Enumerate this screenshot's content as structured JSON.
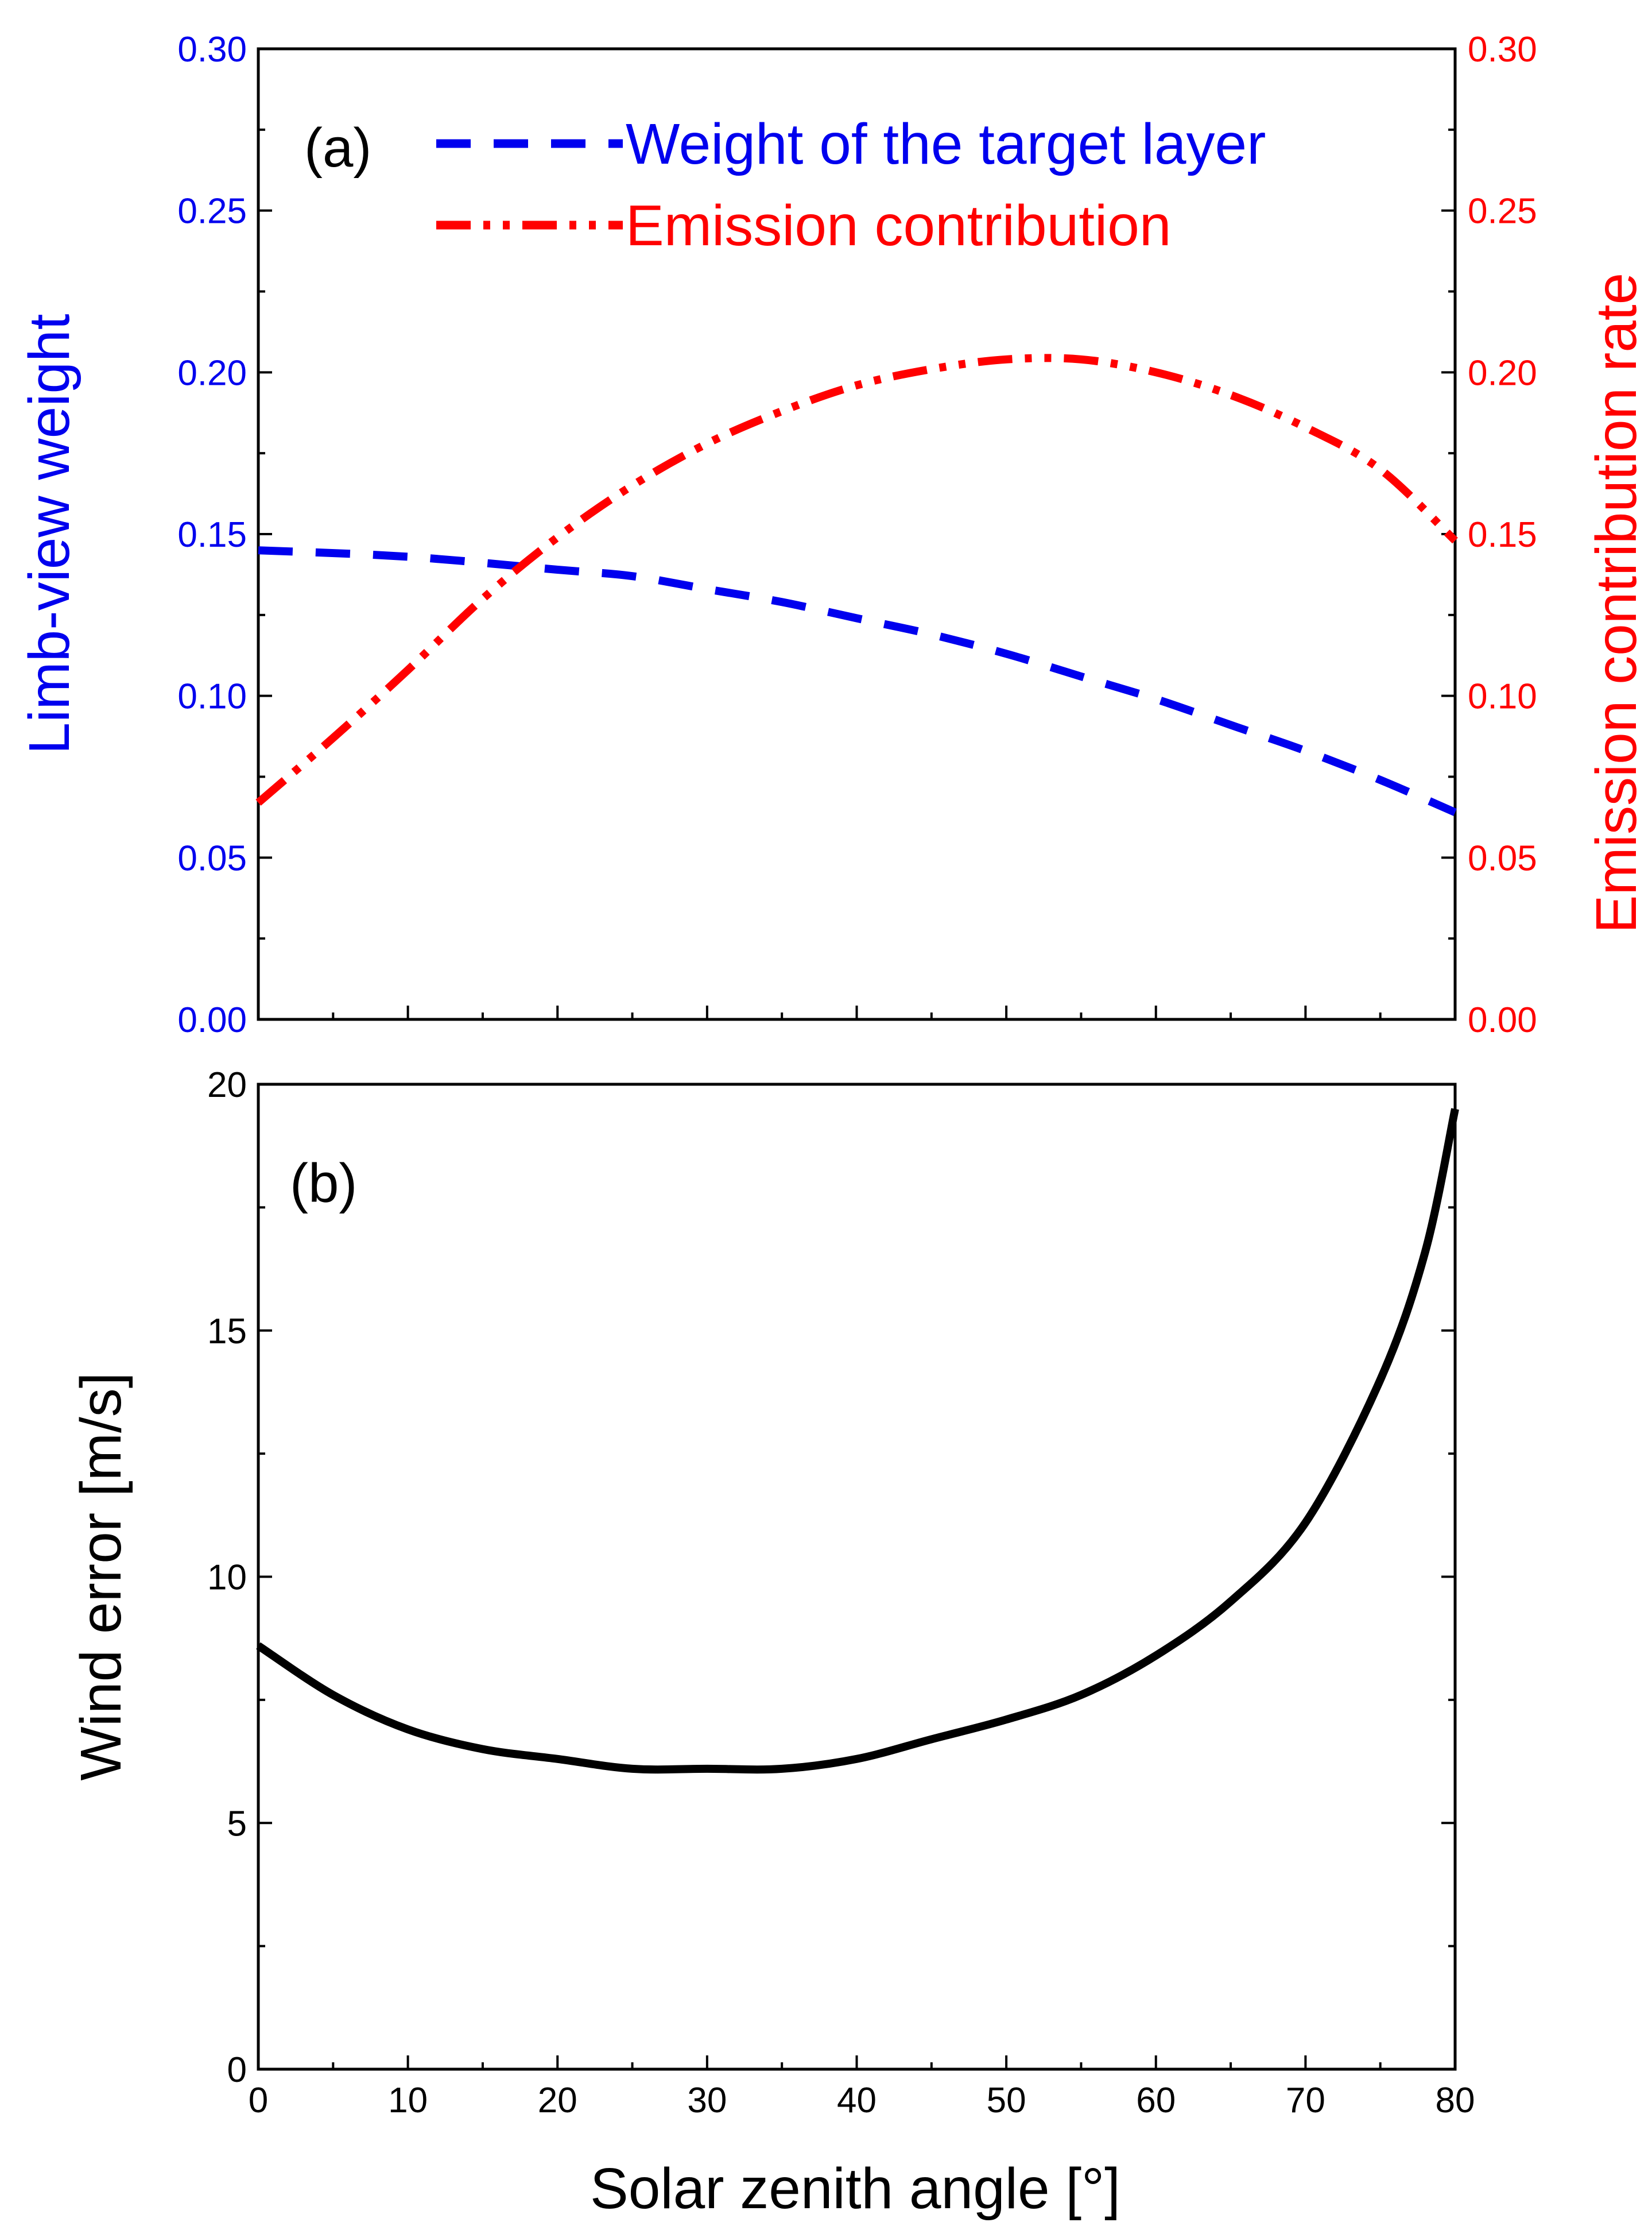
{
  "colors": {
    "blue": "#0000ee",
    "red": "#ff0000",
    "black": "#000000"
  },
  "x_axis": {
    "label": "Solar zenith angle [°]",
    "range": [
      0,
      80
    ],
    "ticks": [
      "0",
      "10",
      "20",
      "30",
      "40",
      "50",
      "60",
      "70",
      "80"
    ]
  },
  "chart_data": [
    {
      "panel": "(a)",
      "type": "line",
      "xlabel": "Solar zenith angle [°]",
      "xlim": [
        0,
        80
      ],
      "ylabel_left": "Limb-view weight",
      "ylabel_right": "Emission contribution rate",
      "ylim_left": [
        0,
        0.3
      ],
      "ylim_right": [
        0,
        0.3
      ],
      "yticks_left": [
        "0.00",
        "0.05",
        "0.10",
        "0.15",
        "0.20",
        "0.25",
        "0.30"
      ],
      "yticks_right": [
        "0.00",
        "0.05",
        "0.10",
        "0.15",
        "0.20",
        "0.25",
        "0.30"
      ],
      "legend_position": "top-left",
      "series": [
        {
          "name": "Weight of the target layer",
          "axis": "left",
          "color": "#0000ee",
          "style": "dash",
          "x": [
            0,
            10,
            20,
            25,
            30,
            35,
            40,
            45,
            50,
            55,
            60,
            65,
            70,
            75,
            80
          ],
          "y": [
            0.145,
            0.143,
            0.139,
            0.137,
            0.133,
            0.129,
            0.124,
            0.119,
            0.113,
            0.106,
            0.099,
            0.091,
            0.083,
            0.074,
            0.064
          ]
        },
        {
          "name": "Emission contribution",
          "axis": "right",
          "color": "#ff0000",
          "style": "dash-dot-dot",
          "x": [
            0,
            5,
            10,
            15,
            20,
            25,
            30,
            35,
            40,
            45,
            50,
            55,
            60,
            65,
            70,
            75,
            80
          ],
          "y": [
            0.067,
            0.087,
            0.108,
            0.13,
            0.149,
            0.165,
            0.178,
            0.188,
            0.196,
            0.201,
            0.204,
            0.204,
            0.2,
            0.193,
            0.183,
            0.17,
            0.148
          ]
        }
      ]
    },
    {
      "panel": "(b)",
      "type": "line",
      "xlabel": "Solar zenith angle [°]",
      "xlim": [
        0,
        80
      ],
      "ylabel": "Wind error [m/s]",
      "ylim": [
        0,
        20
      ],
      "yticks": [
        "0",
        "5",
        "10",
        "15",
        "20"
      ],
      "series": [
        {
          "name": "Wind error",
          "color": "#000000",
          "style": "solid",
          "x": [
            0,
            5,
            10,
            15,
            20,
            25,
            30,
            35,
            40,
            45,
            50,
            55,
            60,
            65,
            70,
            75,
            78,
            80
          ],
          "y": [
            8.6,
            7.6,
            6.9,
            6.5,
            6.3,
            6.1,
            6.1,
            6.1,
            6.3,
            6.7,
            7.1,
            7.6,
            8.4,
            9.5,
            11.1,
            14.0,
            16.6,
            19.5
          ]
        }
      ]
    }
  ]
}
